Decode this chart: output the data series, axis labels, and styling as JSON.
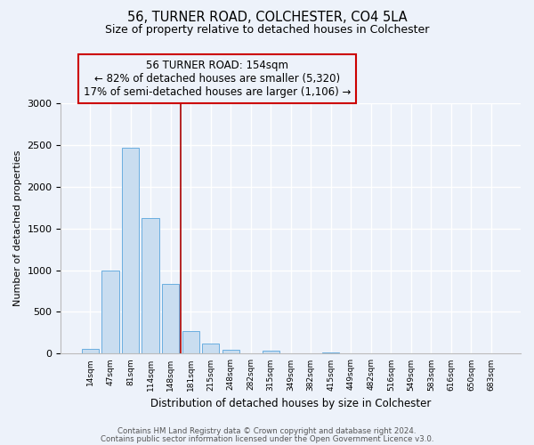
{
  "title": "56, TURNER ROAD, COLCHESTER, CO4 5LA",
  "subtitle": "Size of property relative to detached houses in Colchester",
  "xlabel": "Distribution of detached houses by size in Colchester",
  "ylabel": "Number of detached properties",
  "bar_labels": [
    "14sqm",
    "47sqm",
    "81sqm",
    "114sqm",
    "148sqm",
    "181sqm",
    "215sqm",
    "248sqm",
    "282sqm",
    "315sqm",
    "349sqm",
    "382sqm",
    "415sqm",
    "449sqm",
    "482sqm",
    "516sqm",
    "549sqm",
    "583sqm",
    "616sqm",
    "650sqm",
    "683sqm"
  ],
  "bar_values": [
    55,
    1000,
    2460,
    1620,
    830,
    270,
    125,
    50,
    0,
    38,
    0,
    0,
    18,
    0,
    0,
    0,
    0,
    0,
    0,
    0,
    0
  ],
  "bar_color": "#c9ddf0",
  "bar_edgecolor": "#6aaee0",
  "vline_x": 4.5,
  "vline_color": "#aa0000",
  "annotation_line1": "56 TURNER ROAD: 154sqm",
  "annotation_line2": "← 82% of detached houses are smaller (5,320)",
  "annotation_line3": "17% of semi-detached houses are larger (1,106) →",
  "annotation_box_edgecolor": "#cc0000",
  "ylim": [
    0,
    3000
  ],
  "yticks": [
    0,
    500,
    1000,
    1500,
    2000,
    2500,
    3000
  ],
  "footer1": "Contains HM Land Registry data © Crown copyright and database right 2024.",
  "footer2": "Contains public sector information licensed under the Open Government Licence v3.0.",
  "background_color": "#edf2fa",
  "grid_color": "#ffffff",
  "figsize": [
    6.0,
    5.0
  ],
  "dpi": 100
}
